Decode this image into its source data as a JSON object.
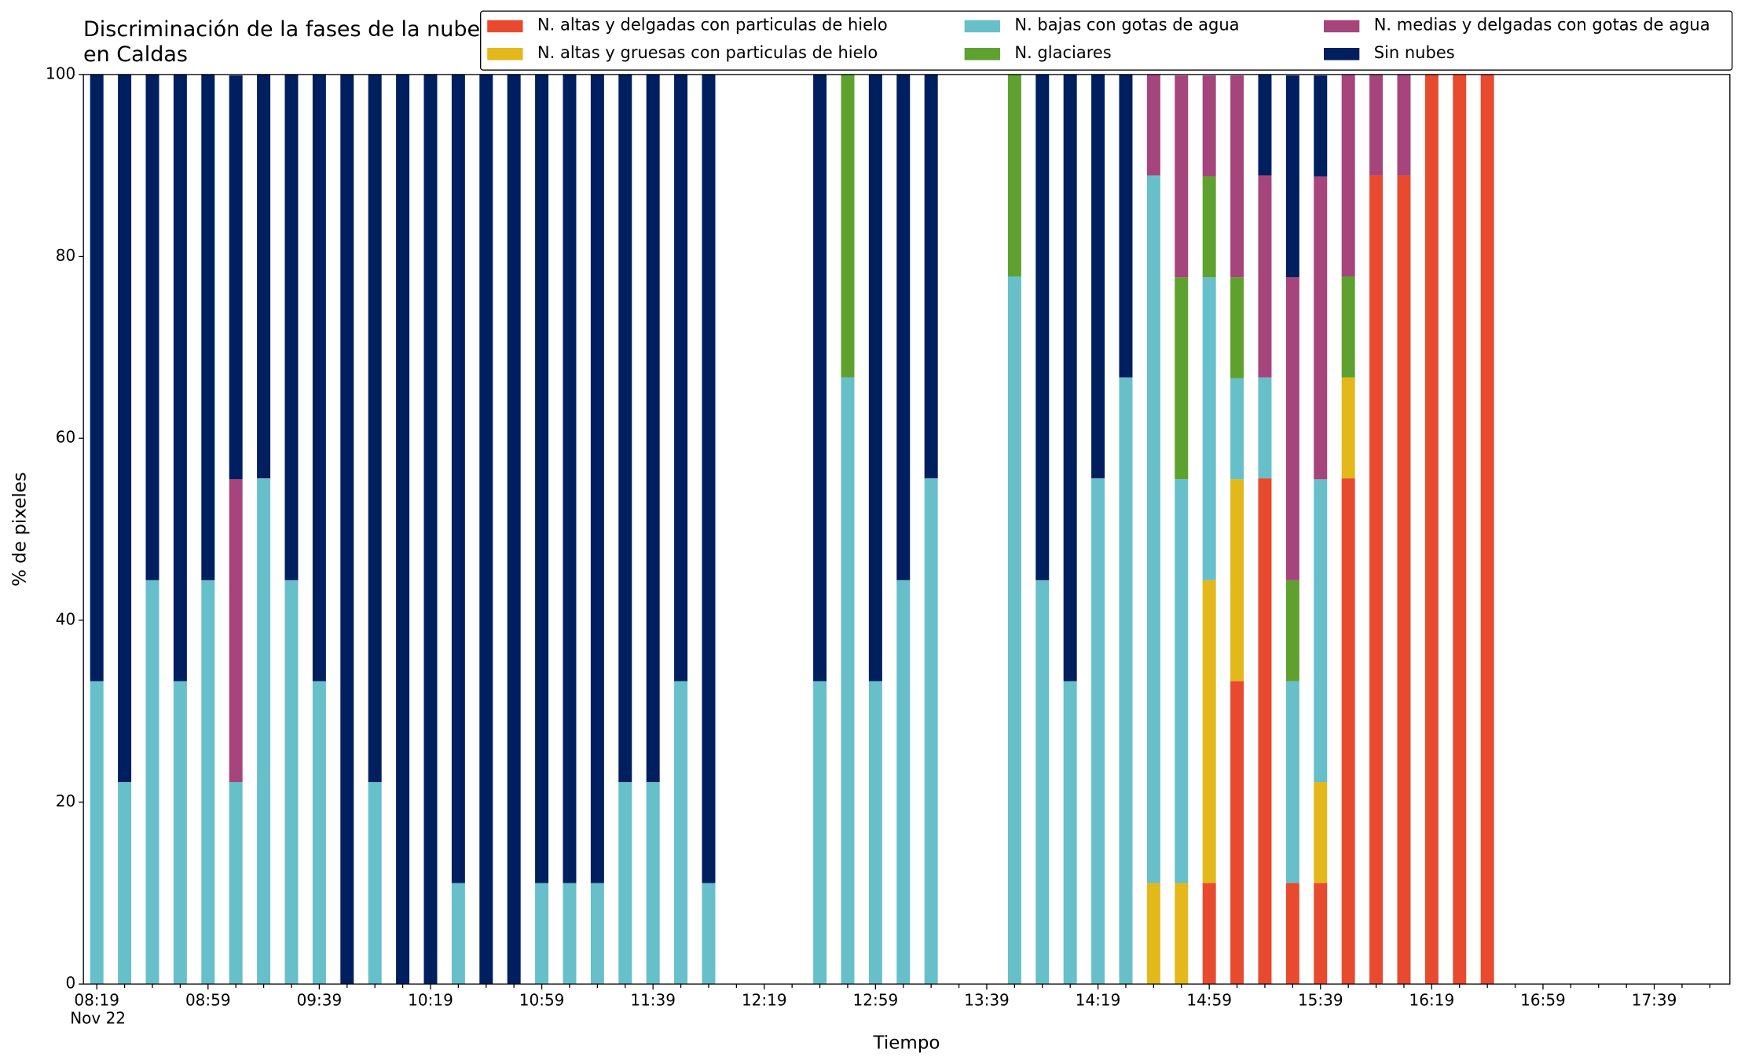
{
  "chart_data": {
    "type": "stacked_bar",
    "title": "Discriminación de la fases de la nube en Caldas",
    "xlabel": "Tiempo",
    "ylabel": "% de pixeles",
    "x_date_label": "Nov 22",
    "categories": [
      "08:19",
      null,
      null,
      null,
      "08:59",
      null,
      null,
      null,
      "09:39",
      null,
      null,
      null,
      "10:19",
      null,
      null,
      null,
      "10:59",
      null,
      null,
      null,
      "11:39",
      null,
      null,
      null,
      "12:19",
      null,
      null,
      null,
      "12:59",
      null,
      null,
      null,
      "13:39",
      null,
      null,
      null,
      "14:19",
      null,
      null,
      null,
      "14:59",
      null,
      null,
      null,
      "15:39",
      null,
      null,
      null,
      "16:19",
      null,
      null,
      null,
      "16:59",
      null,
      null,
      null,
      "17:39",
      null,
      null
    ],
    "series": [
      {
        "name": "N. altas y delgadas con particulas de hielo",
        "color": "#e84a2f",
        "values": [
          0,
          0,
          0,
          0,
          0,
          0,
          0,
          0,
          0,
          0,
          0,
          0,
          0,
          0,
          0,
          0,
          0,
          0,
          0,
          0,
          0,
          0,
          0,
          null,
          null,
          null,
          0,
          0,
          0,
          0,
          0,
          null,
          null,
          0,
          0,
          0,
          0,
          0,
          0,
          0,
          11.1,
          33.3,
          55.6,
          11.1,
          11.1,
          55.6,
          88.9,
          88.9,
          100,
          100,
          100,
          null,
          null,
          null,
          null,
          null,
          null,
          null,
          null
        ]
      },
      {
        "name": "N. altas y gruesas con particulas de hielo",
        "color": "#e3b81b",
        "values": [
          0,
          0,
          0,
          0,
          0,
          0,
          0,
          0,
          0,
          0,
          0,
          0,
          0,
          0,
          0,
          0,
          0,
          0,
          0,
          0,
          0,
          0,
          0,
          null,
          null,
          null,
          0,
          0,
          0,
          0,
          0,
          null,
          null,
          0,
          0,
          0,
          0,
          0,
          11.1,
          11.1,
          33.3,
          22.2,
          0,
          0,
          11.1,
          11.1,
          0,
          0,
          0,
          0,
          0,
          null,
          null,
          null,
          null,
          null,
          null,
          null,
          null
        ]
      },
      {
        "name": "N. bajas con gotas de agua",
        "color": "#67bfca",
        "values": [
          33.3,
          22.2,
          44.4,
          33.3,
          44.4,
          22.2,
          55.6,
          44.4,
          33.3,
          0,
          22.2,
          0,
          0,
          11.1,
          0,
          0,
          11.1,
          11.1,
          11.1,
          22.2,
          22.2,
          33.3,
          11.1,
          null,
          null,
          null,
          33.3,
          66.7,
          33.3,
          44.4,
          55.6,
          null,
          null,
          77.8,
          44.4,
          33.3,
          55.6,
          66.7,
          77.8,
          44.4,
          33.3,
          11.1,
          11.1,
          22.2,
          33.3,
          0,
          0,
          0,
          0,
          0,
          0,
          null,
          null,
          null,
          null,
          null,
          null,
          null,
          null
        ]
      },
      {
        "name": "N. glaciares",
        "color": "#5fa12e",
        "values": [
          0,
          0,
          0,
          0,
          0,
          0,
          0,
          0,
          0,
          0,
          0,
          0,
          0,
          0,
          0,
          0,
          0,
          0,
          0,
          0,
          0,
          0,
          0,
          null,
          null,
          null,
          0,
          33.3,
          0,
          0,
          0,
          null,
          null,
          22.2,
          0,
          0,
          0,
          0,
          0,
          22.2,
          11.1,
          11.1,
          0,
          11.1,
          0,
          11.1,
          0,
          0,
          0,
          0,
          0,
          null,
          null,
          null,
          null,
          null,
          null,
          null,
          null
        ]
      },
      {
        "name": "N. medias y delgadas con gotas de agua",
        "color": "#a5457c",
        "values": [
          0,
          0,
          0,
          0,
          0,
          33.3,
          0,
          0,
          0,
          0,
          0,
          0,
          0,
          0,
          0,
          0,
          0,
          0,
          0,
          0,
          0,
          0,
          0,
          null,
          null,
          null,
          0,
          0,
          0,
          0,
          0,
          null,
          null,
          0,
          0,
          0,
          0,
          0,
          11.1,
          22.2,
          11.1,
          22.2,
          22.2,
          33.3,
          33.3,
          22.2,
          11.1,
          11.1,
          0,
          0,
          0,
          null,
          null,
          null,
          null,
          null,
          null,
          null,
          null
        ]
      },
      {
        "name": "Sin nubes",
        "color": "#001f5f",
        "values": [
          66.7,
          77.8,
          55.6,
          66.7,
          55.6,
          44.4,
          44.4,
          55.6,
          66.7,
          100,
          77.8,
          100,
          100,
          88.9,
          100,
          100,
          88.9,
          88.9,
          88.9,
          77.8,
          77.8,
          66.7,
          88.9,
          null,
          null,
          null,
          66.7,
          0,
          66.7,
          55.6,
          44.4,
          null,
          null,
          0,
          55.6,
          66.7,
          44.4,
          33.3,
          0,
          0,
          0,
          0,
          11.1,
          22.2,
          11.1,
          0,
          0,
          0,
          0,
          0,
          0,
          null,
          null,
          null,
          null,
          null,
          null,
          null,
          null
        ]
      }
    ],
    "ylim": [
      0,
      100
    ],
    "yticks": [
      0,
      20,
      40,
      60,
      80,
      100
    ],
    "grid": false,
    "legend": "upper right"
  }
}
